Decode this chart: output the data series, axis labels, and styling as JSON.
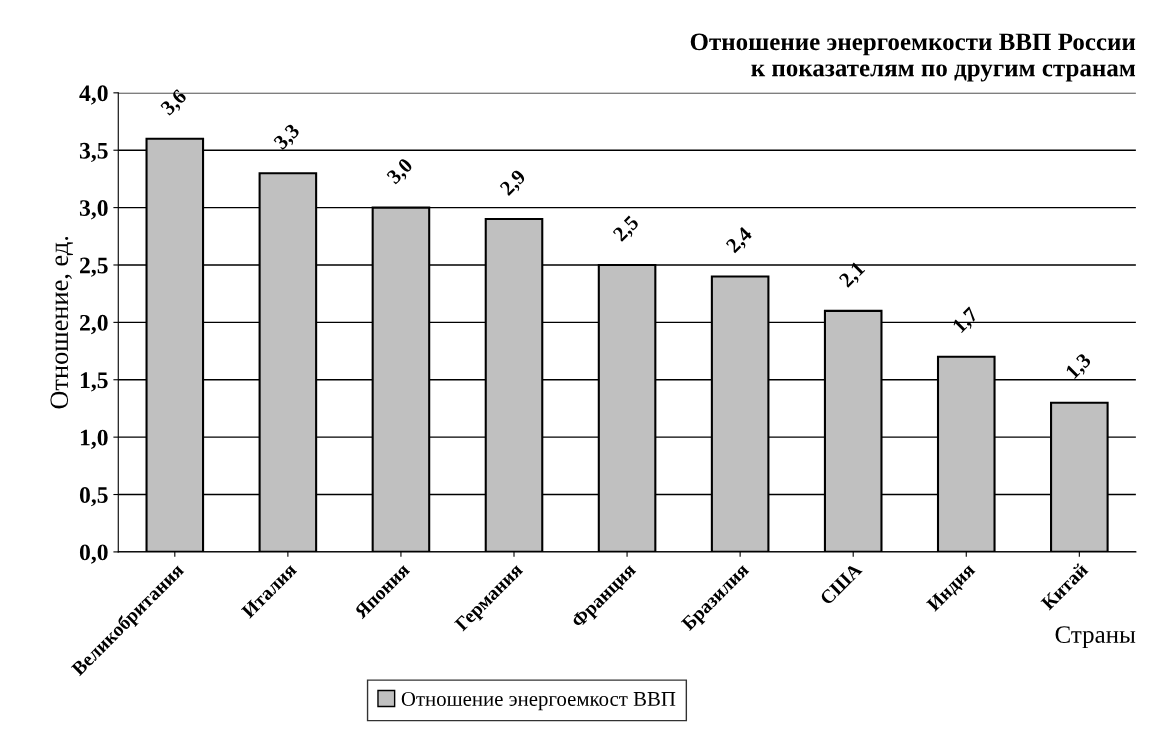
{
  "chart_data": {
    "type": "bar",
    "title": "Отношение энергоемкости ВВП России\nк показателям по другим странам",
    "xlabel": "Страны",
    "ylabel": "Отношение, ед.",
    "categories": [
      "Великобритания",
      "Италия",
      "Япония",
      "Германия",
      "Франция",
      "Бразилия",
      "США",
      "Индия",
      "Китай"
    ],
    "series": [
      {
        "name": "Отношение энергоемкост ВВП",
        "color": "#c0c0c0",
        "values": [
          3.6,
          3.3,
          3.0,
          2.9,
          2.5,
          2.4,
          2.1,
          1.7,
          1.3
        ],
        "value_labels": [
          "3,6",
          "3,3",
          "3,0",
          "2,9",
          "2,5",
          "2,4",
          "2,1",
          "1,7",
          "1,3"
        ]
      }
    ],
    "ylim": [
      0,
      4
    ],
    "yticks": [
      {
        "value": 0,
        "label": "0,0"
      },
      {
        "value": 0.5,
        "label": "0,5"
      },
      {
        "value": 1,
        "label": "1,0"
      },
      {
        "value": 1.5,
        "label": "1,5"
      },
      {
        "value": 2,
        "label": "2,0"
      },
      {
        "value": 2.5,
        "label": "2,5"
      },
      {
        "value": 3,
        "label": "3,0"
      },
      {
        "value": 3.5,
        "label": "3,5"
      },
      {
        "value": 4,
        "label": "4,0"
      }
    ],
    "grid": "y",
    "legend": "bottom"
  }
}
